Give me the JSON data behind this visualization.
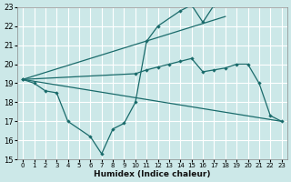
{
  "bg_color": "#cce8e8",
  "line_color": "#1a6b6b",
  "grid_color": "#ffffff",
  "xlabel": "Humidex (Indice chaleur)",
  "xlim": [
    -0.5,
    23.5
  ],
  "ylim": [
    15,
    23
  ],
  "xticks": [
    0,
    1,
    2,
    3,
    4,
    5,
    6,
    7,
    8,
    9,
    10,
    11,
    12,
    13,
    14,
    15,
    16,
    17,
    18,
    19,
    20,
    21,
    22,
    23
  ],
  "yticks": [
    15,
    16,
    17,
    18,
    19,
    20,
    21,
    22,
    23
  ],
  "straight_lines": [
    {
      "x": [
        0,
        18
      ],
      "y": [
        19.2,
        22.5
      ]
    },
    {
      "x": [
        0,
        23
      ],
      "y": [
        19.2,
        17.0
      ]
    }
  ],
  "marker_series": [
    {
      "name": "zigzag_peak",
      "x": [
        0,
        1,
        2,
        3,
        4,
        6,
        7,
        8,
        9,
        10,
        11,
        12,
        14,
        15,
        16,
        17
      ],
      "y": [
        19.2,
        19.0,
        18.6,
        18.5,
        17.0,
        16.2,
        15.3,
        16.6,
        16.9,
        18.0,
        21.2,
        22.0,
        22.8,
        23.1,
        22.2,
        23.1
      ]
    },
    {
      "name": "gentle_curve",
      "x": [
        0,
        10,
        11,
        12,
        13,
        14,
        15,
        16,
        17,
        18,
        19,
        20,
        21,
        22,
        23
      ],
      "y": [
        19.2,
        19.5,
        19.7,
        19.85,
        20.0,
        20.15,
        20.3,
        19.6,
        19.7,
        19.8,
        20.0,
        20.0,
        19.0,
        17.3,
        17.0
      ]
    }
  ]
}
